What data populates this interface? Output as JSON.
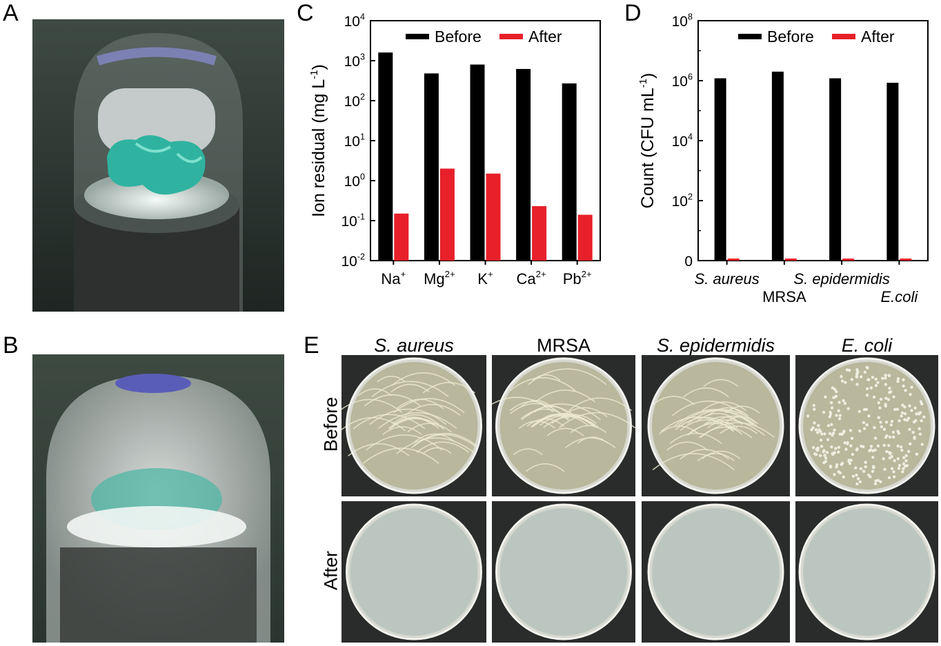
{
  "panels": {
    "A": {
      "letter": "A"
    },
    "B": {
      "letter": "B"
    },
    "C": {
      "letter": "C"
    },
    "D": {
      "letter": "D"
    },
    "E": {
      "letter": "E"
    }
  },
  "panel_e": {
    "columns": [
      "S. aureus",
      "MRSA",
      "S. epidermidis",
      "E. coli"
    ],
    "rows": [
      "Before",
      "After"
    ],
    "italic_columns": [
      true,
      false,
      true,
      true
    ]
  },
  "colors": {
    "before": "#000000",
    "after": "#e8202a",
    "gel": "#2fb3a0",
    "agar_before": "#b9b79c",
    "agar_after": "#bcc6c0",
    "photo_bg": "#2c3a30"
  },
  "chart_data": [
    {
      "type": "bar",
      "panel": "C",
      "ylabel": "Ion residual (mg L",
      "ylabel_sup": "-1",
      "ylabel_close": ")",
      "yscale": "log",
      "ylim": [
        0.01,
        10000
      ],
      "yticks": [
        {
          "value": 0.01,
          "base": "10",
          "exp": "-2"
        },
        {
          "value": 0.1,
          "base": "10",
          "exp": "-1"
        },
        {
          "value": 1,
          "base": "10",
          "exp": "0"
        },
        {
          "value": 10,
          "base": "10",
          "exp": "1"
        },
        {
          "value": 100,
          "base": "10",
          "exp": "2"
        },
        {
          "value": 1000,
          "base": "10",
          "exp": "3"
        },
        {
          "value": 10000,
          "base": "10",
          "exp": "4"
        }
      ],
      "categories": [
        {
          "base": "Na",
          "sup": "+"
        },
        {
          "base": "Mg",
          "sup": "2+"
        },
        {
          "base": "K",
          "sup": "+"
        },
        {
          "base": "Ca",
          "sup": "2+"
        },
        {
          "base": "Pb",
          "sup": "2+"
        }
      ],
      "series": [
        {
          "name": "Before",
          "color": "#000000",
          "values": [
            1600,
            480,
            800,
            620,
            270
          ]
        },
        {
          "name": "After",
          "color": "#e8202a",
          "values": [
            0.15,
            2.0,
            1.5,
            0.23,
            0.14
          ]
        }
      ],
      "legend": "top-right"
    },
    {
      "type": "bar",
      "panel": "D",
      "ylabel": "Count (CFU mL",
      "ylabel_sup": "-1",
      "ylabel_close": ")",
      "yscale": "log",
      "ylim": [
        1,
        100000000
      ],
      "yticks": [
        {
          "value": 1,
          "base": "0",
          "exp": ""
        },
        {
          "value": 100,
          "base": "10",
          "exp": "2"
        },
        {
          "value": 10000,
          "base": "10",
          "exp": "4"
        },
        {
          "value": 1000000,
          "base": "10",
          "exp": "6"
        },
        {
          "value": 100000000,
          "base": "10",
          "exp": "8"
        }
      ],
      "categories": [
        "S. aureus",
        "MRSA",
        "S. epidermidis",
        "E.coli"
      ],
      "series": [
        {
          "name": "Before",
          "color": "#000000",
          "values": [
            1200000,
            2000000,
            1200000,
            850000
          ]
        },
        {
          "name": "After",
          "color": "#e8202a",
          "values": [
            0,
            0,
            0,
            0
          ]
        }
      ],
      "legend": "top-right"
    }
  ]
}
